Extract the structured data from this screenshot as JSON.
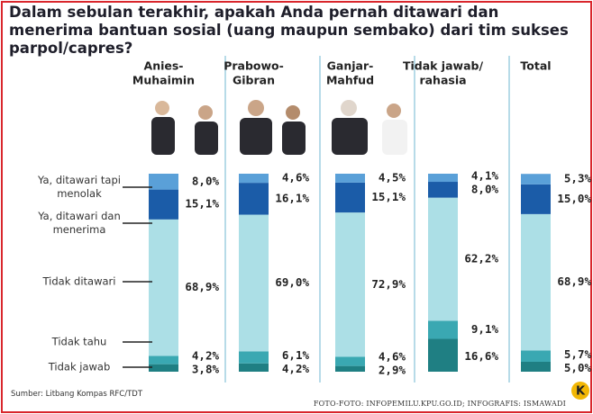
{
  "chart_data": {
    "type": "stacked-bar",
    "title": "Dalam sebulan terakhir, apakah Anda pernah ditawari dan menerima bantuan sosial (uang maupun sembako) dari tim sukses parpol/capres?",
    "categories": [
      [
        "Anies-",
        "Muhaimin"
      ],
      [
        "Prabowo-",
        "Gibran"
      ],
      [
        "Ganjar-",
        "Mahfud"
      ],
      [
        "Tidak jawab/",
        "rahasia"
      ],
      [
        "Total"
      ]
    ],
    "series": [
      {
        "name": "Tidak jawab",
        "color": "#1f7f83",
        "values": [
          3.8,
          4.2,
          2.9,
          16.6,
          5.0
        ],
        "value_labels": [
          "3,8%",
          "4,2%",
          "2,9%",
          "16,6%",
          "5,0%"
        ]
      },
      {
        "name": "Tidak tahu",
        "color": "#3aa8b2",
        "values": [
          4.2,
          6.1,
          4.6,
          9.1,
          5.7
        ],
        "value_labels": [
          "4,2%",
          "6,1%",
          "4,6%",
          "9,1%",
          "5,7%"
        ]
      },
      {
        "name": "Tidak ditawari",
        "color": "#acdfe6",
        "values": [
          68.9,
          69.0,
          72.9,
          62.2,
          68.9
        ],
        "value_labels": [
          "68,9%",
          "69,0%",
          "72,9%",
          "62,2%",
          "68,9%"
        ]
      },
      {
        "name": "Ya, ditawari dan menerima",
        "color": "#1b5ca8",
        "values": [
          15.1,
          16.1,
          15.1,
          8.0,
          15.0
        ],
        "value_labels": [
          "15,1%",
          "16,1%",
          "15,1%",
          "8,0%",
          "15,0%"
        ]
      },
      {
        "name": "Ya, ditawari tapi menolak",
        "color": "#5aa0d8",
        "values": [
          8.0,
          4.6,
          4.5,
          4.1,
          5.3
        ],
        "value_labels": [
          "8,0%",
          "4,6%",
          "4,5%",
          "4,1%",
          "5,3%"
        ]
      }
    ],
    "ylim": [
      0,
      100
    ],
    "source": "Sumber: Litbang Kompas RFC/TDT",
    "credit": "FOTO-FOTO: INFOPEMILU.KPU.GO.ID; INFOGRAFIS: ISMAWADI",
    "logo": "K"
  }
}
